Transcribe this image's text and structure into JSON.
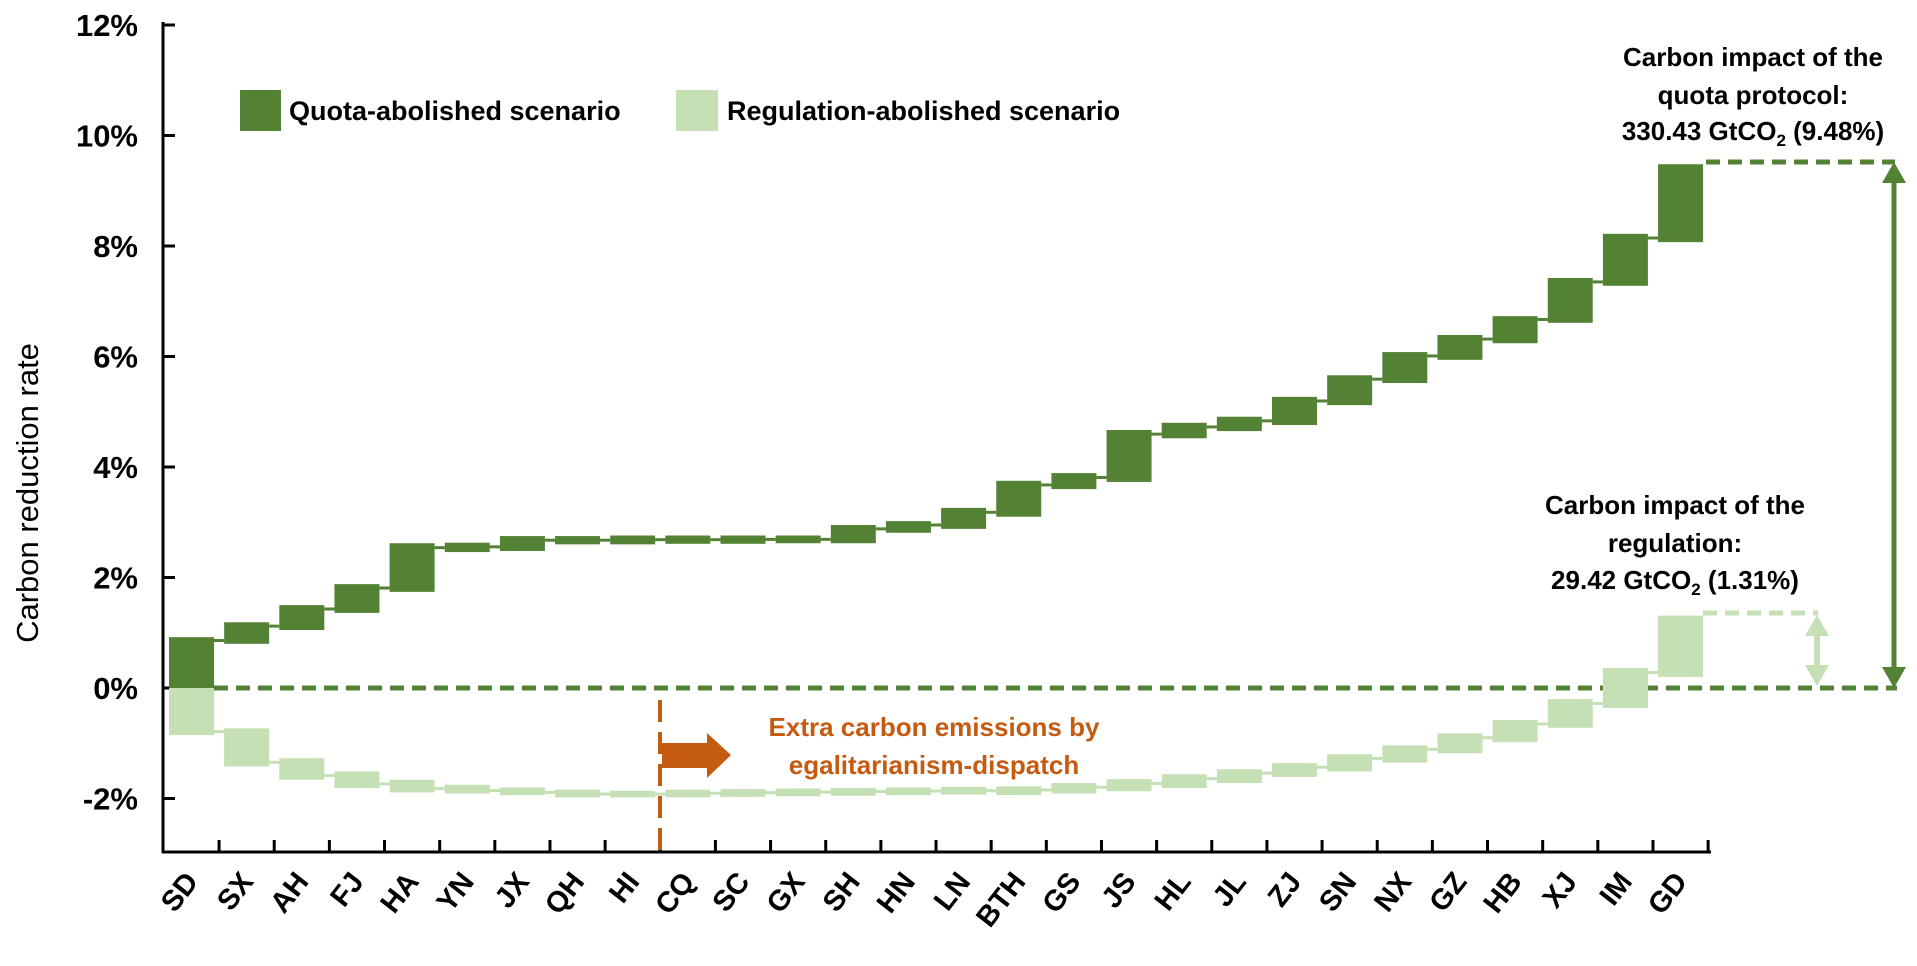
{
  "chart_data": {
    "type": "bar",
    "subtype": "waterfall",
    "title": "",
    "xlabel": "",
    "ylabel": "Carbon reduction rate",
    "ylim": [
      -3,
      12
    ],
    "yticks": [
      -2,
      0,
      2,
      4,
      6,
      8,
      10,
      12
    ],
    "ytick_labels": [
      "-2%",
      "0%",
      "2%",
      "4%",
      "6%",
      "8%",
      "10%",
      "12%"
    ],
    "grid": false,
    "legend_position": "top-left",
    "categories": [
      "SD",
      "SX",
      "AH",
      "FJ",
      "HA",
      "YN",
      "JX",
      "QH",
      "HI",
      "CQ",
      "SC",
      "GX",
      "SH",
      "HN",
      "LN",
      "BTH",
      "GS",
      "JS",
      "HL",
      "JL",
      "ZJ",
      "SN",
      "NX",
      "GZ",
      "HB",
      "XJ",
      "IM",
      "GD"
    ],
    "series": [
      {
        "name": "Quota-abolished scenario",
        "color": "#548235",
        "bars_low": [
          0.0,
          0.8,
          1.05,
          1.36,
          1.74,
          2.46,
          2.48,
          2.6,
          2.6,
          2.61,
          2.61,
          2.62,
          2.62,
          2.81,
          2.88,
          3.1,
          3.6,
          3.73,
          4.52,
          4.65,
          4.76,
          5.12,
          5.52,
          5.94,
          6.24,
          6.61,
          7.28,
          8.07
        ],
        "bars_high": [
          0.92,
          1.19,
          1.5,
          1.88,
          2.62,
          2.63,
          2.75,
          2.75,
          2.76,
          2.76,
          2.76,
          2.76,
          2.95,
          3.02,
          3.26,
          3.75,
          3.89,
          4.67,
          4.8,
          4.91,
          5.27,
          5.66,
          6.08,
          6.39,
          6.73,
          7.42,
          8.22,
          9.48
        ]
      },
      {
        "name": "Regulation-abolished scenario",
        "color": "#c5e0b4",
        "bars_low": [
          -0.85,
          -1.42,
          -1.66,
          -1.81,
          -1.89,
          -1.91,
          -1.94,
          -1.98,
          -1.98,
          -1.98,
          -1.97,
          -1.96,
          -1.95,
          -1.94,
          -1.93,
          -1.94,
          -1.91,
          -1.87,
          -1.81,
          -1.72,
          -1.61,
          -1.51,
          -1.35,
          -1.18,
          -0.98,
          -0.72,
          -0.36,
          0.2
        ],
        "bars_high": [
          0.0,
          -0.73,
          -1.27,
          -1.51,
          -1.66,
          -1.75,
          -1.8,
          -1.84,
          -1.86,
          -1.84,
          -1.83,
          -1.82,
          -1.81,
          -1.8,
          -1.79,
          -1.78,
          -1.72,
          -1.65,
          -1.56,
          -1.47,
          -1.36,
          -1.2,
          -1.04,
          -0.82,
          -0.58,
          -0.2,
          0.36,
          1.31
        ]
      }
    ],
    "reference_line": {
      "value": 0,
      "style": "dashed",
      "color": "#548235"
    },
    "annotations": [
      {
        "id": "quota",
        "lines": [
          "Carbon impact of the",
          "quota protocol:"
        ],
        "value_line": {
          "prefix": "330.43 GtCO",
          "subscript": "2",
          "suffix": " (9.48%)"
        },
        "span": [
          0,
          9.48
        ],
        "color": "#548235"
      },
      {
        "id": "regulation",
        "lines": [
          "Carbon impact of the",
          "regulation:"
        ],
        "value_line": {
          "prefix": "29.42 GtCO",
          "subscript": "2",
          "suffix": " (1.31%)"
        },
        "span": [
          0,
          1.31
        ],
        "color": "#c5e0b4"
      },
      {
        "id": "egalitarian",
        "lines": [
          "Extra carbon emissions by",
          "egalitarianism-dispatch"
        ],
        "from_category": "CQ",
        "direction": "right",
        "color": "#c55a11"
      }
    ]
  }
}
